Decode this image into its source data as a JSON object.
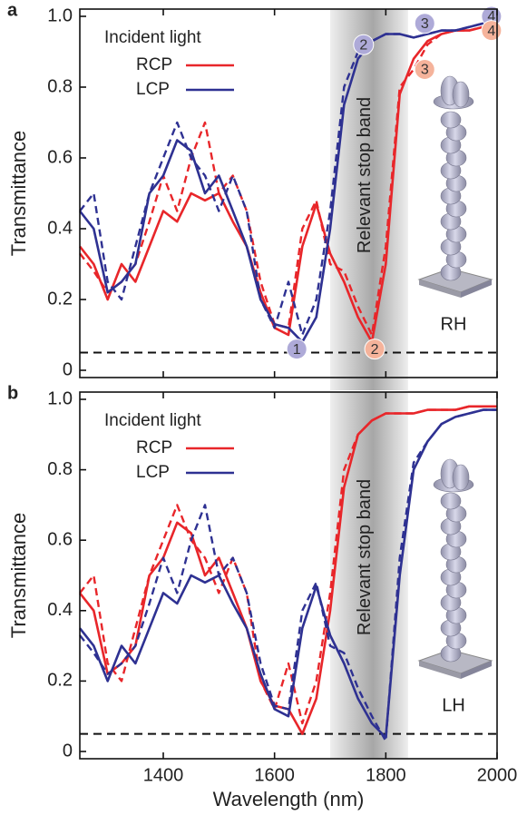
{
  "chart_data": [
    {
      "type": "line",
      "panel_label": "a",
      "ylabel": "Transmittance",
      "legend_title": "Incident light",
      "xlim": [
        1250,
        2000
      ],
      "xticks": [
        1400,
        1600,
        1800,
        2000
      ],
      "ylim": [
        0,
        1
      ],
      "yticks": [
        0,
        0.2,
        0.4,
        0.6,
        0.8,
        {
          "value": 1,
          "label": "1.0"
        }
      ],
      "threshold": 0.05,
      "band": [
        1700,
        1840
      ],
      "band_label": "Relevant stop band",
      "helix_label": "RH",
      "x": [
        1250,
        1275,
        1300,
        1325,
        1350,
        1375,
        1400,
        1425,
        1450,
        1475,
        1500,
        1525,
        1550,
        1575,
        1600,
        1625,
        1650,
        1675,
        1700,
        1725,
        1750,
        1775,
        1800,
        1825,
        1850,
        1875,
        1900,
        1925,
        1950,
        1975,
        2000
      ],
      "series": [
        {
          "name": "RCP",
          "color": "#e8262a",
          "values": [
            0.35,
            0.3,
            0.2,
            0.3,
            0.25,
            0.35,
            0.45,
            0.42,
            0.5,
            0.48,
            0.5,
            0.42,
            0.35,
            0.22,
            0.12,
            0.1,
            0.35,
            0.47,
            0.33,
            0.25,
            0.15,
            0.08,
            0.3,
            0.78,
            0.88,
            0.93,
            0.95,
            0.96,
            0.96,
            0.97,
            0.97
          ],
          "values_dashed": [
            0.33,
            0.28,
            0.22,
            0.25,
            0.3,
            0.42,
            0.55,
            0.45,
            0.6,
            0.7,
            0.5,
            0.55,
            0.45,
            0.25,
            0.13,
            0.12,
            0.4,
            0.48,
            0.3,
            0.28,
            0.18,
            0.1,
            0.35,
            0.8,
            0.85,
            0.92,
            0.95,
            0.96,
            0.96,
            0.97,
            0.97
          ]
        },
        {
          "name": "LCP",
          "color": "#2e3192",
          "values": [
            0.45,
            0.4,
            0.22,
            0.25,
            0.3,
            0.5,
            0.55,
            0.65,
            0.62,
            0.5,
            0.55,
            0.45,
            0.35,
            0.2,
            0.13,
            0.12,
            0.08,
            0.15,
            0.4,
            0.75,
            0.88,
            0.93,
            0.95,
            0.95,
            0.94,
            0.95,
            0.96,
            0.96,
            0.97,
            0.98,
            0.98
          ],
          "values_dashed": [
            0.45,
            0.5,
            0.25,
            0.2,
            0.35,
            0.5,
            0.6,
            0.7,
            0.6,
            0.55,
            0.45,
            0.55,
            0.45,
            0.2,
            0.12,
            0.25,
            0.1,
            0.2,
            0.45,
            0.8,
            0.9,
            0.93,
            0.95,
            0.95,
            0.94,
            0.95,
            0.96,
            0.96,
            0.97,
            0.98,
            0.98
          ]
        }
      ],
      "markers": [
        {
          "label": "1",
          "x": 1640,
          "y": 0.06,
          "color": "#aeaad8"
        },
        {
          "label": "2",
          "x": 1760,
          "y": 0.92,
          "color": "#aeaad8"
        },
        {
          "label": "3",
          "x": 1870,
          "y": 0.98,
          "color": "#aeaad8"
        },
        {
          "label": "4",
          "x": 1990,
          "y": 1.0,
          "color": "#aeaad8"
        },
        {
          "label": "2",
          "x": 1780,
          "y": 0.06,
          "color": "#f5b39b"
        },
        {
          "label": "3",
          "x": 1870,
          "y": 0.85,
          "color": "#f5b39b"
        },
        {
          "label": "4",
          "x": 1990,
          "y": 0.96,
          "color": "#f5b39b"
        }
      ]
    },
    {
      "type": "line",
      "panel_label": "b",
      "ylabel": "Transmittance",
      "xlabel": "Wavelength (nm)",
      "legend_title": "Incident light",
      "xlim": [
        1250,
        2000
      ],
      "xticks": [
        1400,
        1600,
        1800,
        2000
      ],
      "ylim": [
        0,
        1
      ],
      "yticks": [
        0,
        0.2,
        0.4,
        0.6,
        0.8,
        {
          "value": 1,
          "label": "1.0"
        }
      ],
      "threshold": 0.05,
      "band": [
        1700,
        1840
      ],
      "band_label": "Relevant stop band",
      "helix_label": "LH",
      "x": [
        1250,
        1275,
        1300,
        1325,
        1350,
        1375,
        1400,
        1425,
        1450,
        1475,
        1500,
        1525,
        1550,
        1575,
        1600,
        1625,
        1650,
        1675,
        1700,
        1725,
        1750,
        1775,
        1800,
        1825,
        1850,
        1875,
        1900,
        1925,
        1950,
        1975,
        2000
      ],
      "series": [
        {
          "name": "RCP",
          "color": "#e8262a",
          "values": [
            0.45,
            0.4,
            0.22,
            0.25,
            0.3,
            0.5,
            0.55,
            0.65,
            0.62,
            0.5,
            0.55,
            0.45,
            0.35,
            0.2,
            0.13,
            0.12,
            0.05,
            0.15,
            0.4,
            0.75,
            0.9,
            0.94,
            0.96,
            0.96,
            0.96,
            0.97,
            0.97,
            0.97,
            0.98,
            0.98,
            0.98
          ],
          "values_dashed": [
            0.45,
            0.5,
            0.25,
            0.2,
            0.35,
            0.5,
            0.6,
            0.7,
            0.6,
            0.55,
            0.45,
            0.55,
            0.45,
            0.2,
            0.12,
            0.25,
            0.08,
            0.2,
            0.45,
            0.8,
            0.9,
            0.94,
            0.96,
            0.96,
            0.96,
            0.97,
            0.97,
            0.97,
            0.98,
            0.98,
            0.98
          ]
        },
        {
          "name": "LCP",
          "color": "#2e3192",
          "values": [
            0.35,
            0.3,
            0.2,
            0.3,
            0.25,
            0.35,
            0.45,
            0.42,
            0.5,
            0.48,
            0.5,
            0.42,
            0.35,
            0.22,
            0.12,
            0.1,
            0.35,
            0.47,
            0.33,
            0.25,
            0.15,
            0.08,
            0.04,
            0.5,
            0.8,
            0.88,
            0.93,
            0.95,
            0.96,
            0.97,
            0.97
          ],
          "values_dashed": [
            0.33,
            0.28,
            0.22,
            0.25,
            0.3,
            0.42,
            0.55,
            0.45,
            0.6,
            0.7,
            0.5,
            0.55,
            0.45,
            0.25,
            0.13,
            0.12,
            0.4,
            0.48,
            0.3,
            0.28,
            0.18,
            0.1,
            0.03,
            0.55,
            0.82,
            0.88,
            0.93,
            0.95,
            0.96,
            0.97,
            0.97
          ]
        }
      ]
    }
  ]
}
